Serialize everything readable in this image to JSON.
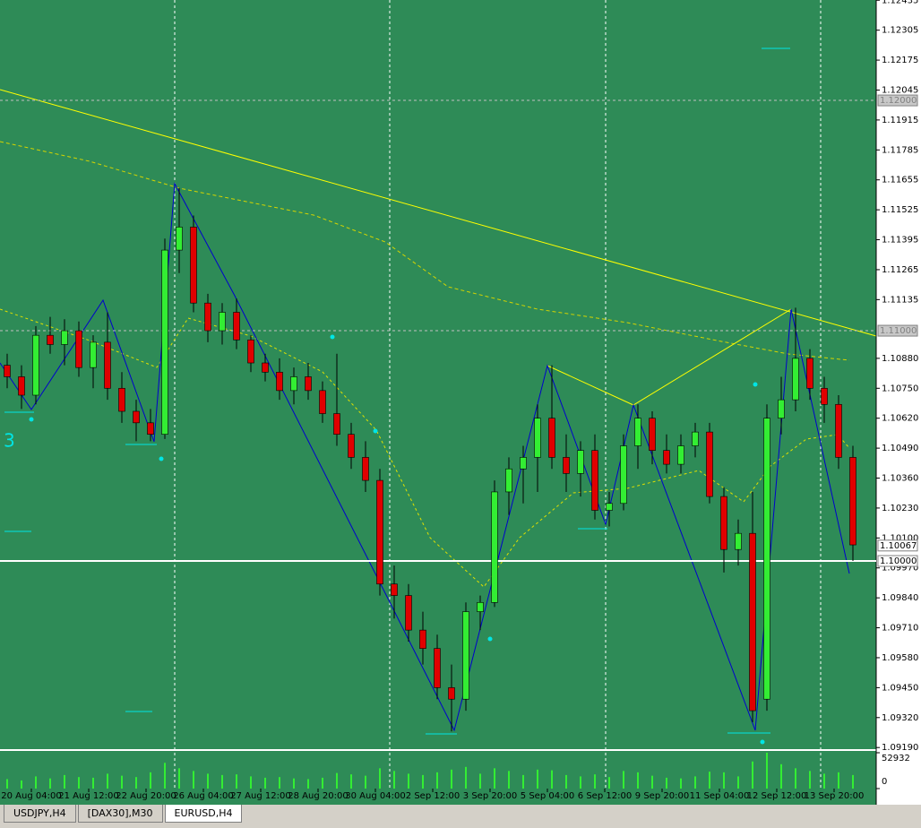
{
  "tabs": [
    "USDJPY,H4",
    "[DAX30],M30",
    "EURUSD,H4"
  ],
  "active_tab": 2,
  "chart_data": {
    "type": "candlestick",
    "annotation": "3",
    "up_color": "#33ee33",
    "down_color": "#e00000",
    "ylim": [
      1.09183,
      1.12436
    ],
    "yticks": [
      {
        "value": 1.12435,
        "label": "1.12435"
      },
      {
        "value": 1.12305,
        "label": "1.12305"
      },
      {
        "value": 1.12175,
        "label": "1.12175"
      },
      {
        "value": 1.12045,
        "label": "1.12045"
      },
      {
        "value": 1.11915,
        "label": "1.11915"
      },
      {
        "value": 1.11785,
        "label": "1.11785"
      },
      {
        "value": 1.11655,
        "label": "1.11655"
      },
      {
        "value": 1.11525,
        "label": "1.11525"
      },
      {
        "value": 1.11395,
        "label": "1.11395"
      },
      {
        "value": 1.11265,
        "label": "1.11265"
      },
      {
        "value": 1.11135,
        "label": "1.11135"
      },
      {
        "value": 1.1088,
        "label": "1.10880"
      },
      {
        "value": 1.1075,
        "label": "1.10750"
      },
      {
        "value": 1.1062,
        "label": "1.10620"
      },
      {
        "value": 1.1049,
        "label": "1.10490"
      },
      {
        "value": 1.1036,
        "label": "1.10360"
      },
      {
        "value": 1.1023,
        "label": "1.10230"
      },
      {
        "value": 1.101,
        "label": "1.10100"
      },
      {
        "value": 1.0997,
        "label": "1.09970"
      },
      {
        "value": 1.0984,
        "label": "1.09840"
      },
      {
        "value": 1.0971,
        "label": "1.09710"
      },
      {
        "value": 1.0958,
        "label": "1.09580"
      },
      {
        "value": 1.0945,
        "label": "1.09450"
      },
      {
        "value": 1.0932,
        "label": "1.09320"
      },
      {
        "value": 1.0919,
        "label": "1.09190"
      }
    ],
    "price_lines": [
      {
        "value": 1.12,
        "label": "1.12000",
        "style": "dashed"
      },
      {
        "value": 1.11,
        "label": "1.11000",
        "style": "dashed"
      },
      {
        "value": 1.10067,
        "label": "1.10067",
        "style": "none"
      },
      {
        "value": 1.1,
        "label": "1.10000",
        "style": "solid"
      }
    ],
    "x_labels": [
      "20 Aug 04:00",
      "21 Aug 12:00",
      "22 Aug 20:00",
      "26 Aug 04:00",
      "27 Aug 12:00",
      "28 Aug 20:00",
      "30 Aug 04:00",
      "2 Sep 12:00",
      "3 Sep 20:00",
      "5 Sep 04:00",
      "6 Sep 12:00",
      "9 Sep 20:00",
      "11 Sep 04:00",
      "12 Sep 12:00",
      "13 Sep 20:00"
    ],
    "candles": [
      [
        1.1085,
        1.109,
        1.1075,
        1.108
      ],
      [
        1.108,
        1.1085,
        1.1066,
        1.1072
      ],
      [
        1.1072,
        1.1102,
        1.1068,
        1.1098
      ],
      [
        1.1098,
        1.1106,
        1.109,
        1.1094
      ],
      [
        1.1094,
        1.1105,
        1.1085,
        1.11
      ],
      [
        1.11,
        1.1104,
        1.108,
        1.1084
      ],
      [
        1.1084,
        1.1098,
        1.1075,
        1.1095
      ],
      [
        1.1095,
        1.1108,
        1.107,
        1.1075
      ],
      [
        1.1075,
        1.1082,
        1.106,
        1.1065
      ],
      [
        1.1065,
        1.107,
        1.1052,
        1.106
      ],
      [
        1.106,
        1.1066,
        1.1052,
        1.1055
      ],
      [
        1.1055,
        1.114,
        1.1053,
        1.1135
      ],
      [
        1.1135,
        1.1162,
        1.1125,
        1.1145
      ],
      [
        1.1145,
        1.115,
        1.1108,
        1.1112
      ],
      [
        1.1112,
        1.1116,
        1.1095,
        1.11
      ],
      [
        1.11,
        1.1112,
        1.1094,
        1.1108
      ],
      [
        1.1108,
        1.1114,
        1.1092,
        1.1096
      ],
      [
        1.1096,
        1.1098,
        1.1082,
        1.1086
      ],
      [
        1.1086,
        1.109,
        1.1078,
        1.1082
      ],
      [
        1.1082,
        1.1088,
        1.107,
        1.1074
      ],
      [
        1.1074,
        1.1084,
        1.1068,
        1.108
      ],
      [
        1.108,
        1.1086,
        1.107,
        1.1074
      ],
      [
        1.1074,
        1.1078,
        1.106,
        1.1064
      ],
      [
        1.1064,
        1.109,
        1.105,
        1.1055
      ],
      [
        1.1055,
        1.106,
        1.104,
        1.1045
      ],
      [
        1.1045,
        1.1052,
        1.103,
        1.1035
      ],
      [
        1.1035,
        1.104,
        1.0985,
        1.099
      ],
      [
        1.099,
        1.0998,
        1.0975,
        1.0985
      ],
      [
        1.0985,
        1.099,
        1.0965,
        1.097
      ],
      [
        1.097,
        1.0978,
        1.0955,
        1.0962
      ],
      [
        1.0962,
        1.0968,
        1.094,
        1.0945
      ],
      [
        1.0945,
        1.0955,
        1.0926,
        1.094
      ],
      [
        1.094,
        1.0982,
        1.0935,
        1.0978
      ],
      [
        1.0978,
        1.0985,
        1.097,
        1.0982
      ],
      [
        1.0982,
        1.1035,
        1.098,
        1.103
      ],
      [
        1.103,
        1.1045,
        1.102,
        1.104
      ],
      [
        1.104,
        1.105,
        1.1025,
        1.1045
      ],
      [
        1.1045,
        1.1068,
        1.103,
        1.1062
      ],
      [
        1.1062,
        1.1085,
        1.104,
        1.1045
      ],
      [
        1.1045,
        1.1055,
        1.103,
        1.1038
      ],
      [
        1.1038,
        1.1052,
        1.1028,
        1.1048
      ],
      [
        1.1048,
        1.1055,
        1.1018,
        1.1022
      ],
      [
        1.1022,
        1.103,
        1.1015,
        1.1025
      ],
      [
        1.1025,
        1.1055,
        1.1022,
        1.105
      ],
      [
        1.105,
        1.1068,
        1.104,
        1.1062
      ],
      [
        1.1062,
        1.1065,
        1.1042,
        1.1048
      ],
      [
        1.1048,
        1.1055,
        1.1038,
        1.1042
      ],
      [
        1.1042,
        1.1055,
        1.1038,
        1.105
      ],
      [
        1.105,
        1.106,
        1.1045,
        1.1056
      ],
      [
        1.1056,
        1.106,
        1.1025,
        1.1028
      ],
      [
        1.1028,
        1.1032,
        1.0995,
        1.1005
      ],
      [
        1.1005,
        1.1018,
        1.0998,
        1.1012
      ],
      [
        1.1012,
        1.103,
        1.093,
        1.0935
      ],
      [
        1.094,
        1.1068,
        1.0935,
        1.1062
      ],
      [
        1.1062,
        1.108,
        1.1055,
        1.107
      ],
      [
        1.107,
        1.111,
        1.1065,
        1.1088
      ],
      [
        1.1088,
        1.1092,
        1.107,
        1.1075
      ],
      [
        1.1075,
        1.108,
        1.106,
        1.1068
      ],
      [
        1.1068,
        1.1072,
        1.104,
        1.1045
      ],
      [
        1.1045,
        1.105,
        1.1,
        1.1007
      ]
    ],
    "volumes": [
      14000,
      12000,
      18000,
      15000,
      20000,
      17000,
      16000,
      22000,
      19000,
      17000,
      24000,
      38000,
      30000,
      26000,
      22000,
      20000,
      21000,
      18000,
      16000,
      17000,
      15000,
      14000,
      16000,
      23000,
      21000,
      19000,
      30000,
      26000,
      22000,
      20000,
      24000,
      28000,
      32000,
      22000,
      30000,
      26000,
      20000,
      28000,
      27000,
      20000,
      18000,
      21000,
      17000,
      26000,
      24000,
      19000,
      16000,
      15000,
      18000,
      25000,
      24000,
      18000,
      40000,
      52932,
      36000,
      30000,
      26000,
      22000,
      24000,
      20000
    ],
    "vlim": [
      0,
      52932
    ],
    "vticks": [
      52932,
      0
    ]
  }
}
